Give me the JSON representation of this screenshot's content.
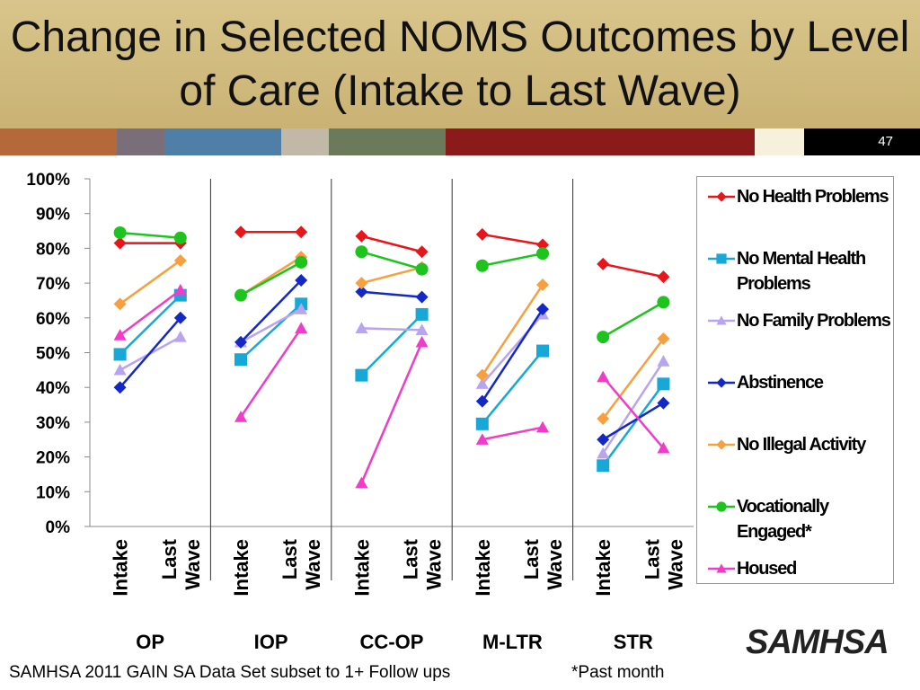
{
  "title": "Change in Selected NOMS Outcomes by Level of Care (Intake to Last Wave)",
  "slide_number": "47",
  "footnote": "SAMHSA 2011 GAIN SA Data Set subset to 1+ Follow ups",
  "note": "*Past month",
  "logo": "SAMHSA",
  "chart_data": {
    "type": "line",
    "categories": [
      "Intake",
      "Last Wave",
      "Intake",
      "Last Wave",
      "Intake",
      "Last Wave",
      "Intake",
      "Last Wave",
      "Intake",
      "Last Wave"
    ],
    "groups": [
      "OP",
      "IOP",
      "CC-OP",
      "M-LTR",
      "STR"
    ],
    "ylim": [
      0,
      100
    ],
    "yticks": [
      {
        "value": 0,
        "label": "0%"
      },
      {
        "value": 10,
        "label": "10%"
      },
      {
        "value": 20,
        "label": "20%"
      },
      {
        "value": 30,
        "label": "30%"
      },
      {
        "value": 40,
        "label": "40%"
      },
      {
        "value": 50,
        "label": "50%"
      },
      {
        "value": 60,
        "label": "60%"
      },
      {
        "value": 70,
        "label": "70%"
      },
      {
        "value": 80,
        "label": "80%"
      },
      {
        "value": 90,
        "label": "90%"
      },
      {
        "value": 100,
        "label": "100%"
      }
    ],
    "legend": "right",
    "series": [
      {
        "name": "No Health Problems",
        "color": "#e8161b",
        "marker": "diamond",
        "values": [
          81.5,
          81.5,
          84.7,
          84.7,
          83.5,
          79,
          84,
          81,
          75.5,
          71.8
        ]
      },
      {
        "name": "No Mental Health Problems",
        "color": "#18a8d8",
        "marker": "square",
        "values": [
          49.5,
          66.5,
          48,
          64,
          43.5,
          61,
          29.5,
          50.5,
          17.5,
          41
        ]
      },
      {
        "name": "No Family Problems",
        "color": "#b9a4f0",
        "marker": "triangle",
        "values": [
          45,
          54.5,
          53,
          62.5,
          57,
          56.5,
          41,
          61,
          21,
          47.5
        ]
      },
      {
        "name": "Abstinence",
        "color": "#1428c8",
        "marker": "diamond",
        "values": [
          40,
          60,
          53,
          70.8,
          67.5,
          66,
          36,
          62.5,
          25,
          35.5
        ]
      },
      {
        "name": "No Illegal Activity",
        "color": "#f7a040",
        "marker": "diamond",
        "values": [
          64,
          76.5,
          66.5,
          77.5,
          70,
          74.5,
          43.5,
          69.5,
          31,
          54
        ]
      },
      {
        "name": "Vocationally Engaged*",
        "color": "#1ec41e",
        "marker": "circle",
        "values": [
          84.5,
          83,
          66.5,
          76,
          79,
          74,
          75,
          78.5,
          54.5,
          64.5
        ]
      },
      {
        "name": "Housed",
        "color": "#f03cc8",
        "marker": "triangle",
        "values": [
          55,
          68,
          31.5,
          57,
          12.5,
          53,
          25,
          28.5,
          43,
          22.5
        ]
      }
    ]
  }
}
